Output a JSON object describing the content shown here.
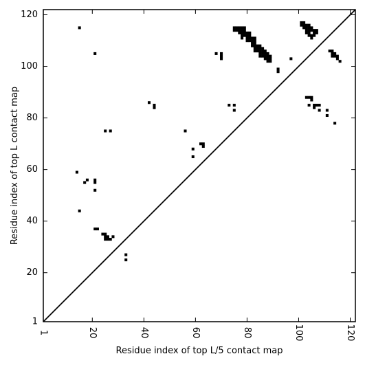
{
  "chart_data": {
    "type": "scatter",
    "title": "",
    "xlabel": "Residue index of top L/5 contact map",
    "ylabel": "Residue index of top L contact map",
    "xlim": [
      1,
      122
    ],
    "ylim": [
      1,
      122
    ],
    "xticks": [
      1,
      20,
      40,
      60,
      80,
      100,
      120
    ],
    "yticks": [
      1,
      20,
      40,
      60,
      80,
      100,
      120
    ],
    "grid": false,
    "marker": "square",
    "marker_color": "#000000",
    "diagonal": true,
    "series": [
      {
        "values": [
          [
            15,
            115
          ],
          [
            21,
            105
          ],
          [
            14,
            59
          ],
          [
            15,
            44
          ],
          [
            17,
            55
          ],
          [
            18,
            56
          ],
          [
            21,
            55
          ],
          [
            21,
            56
          ],
          [
            21,
            52
          ],
          [
            21,
            37
          ],
          [
            22,
            37
          ],
          [
            24,
            35
          ],
          [
            25,
            35
          ],
          [
            25,
            34
          ],
          [
            25,
            33
          ],
          [
            26,
            34
          ],
          [
            26,
            33
          ],
          [
            27,
            33
          ],
          [
            28,
            34
          ],
          [
            33,
            27
          ],
          [
            33,
            25
          ],
          [
            25,
            75
          ],
          [
            27,
            75
          ],
          [
            42,
            86
          ],
          [
            44,
            85
          ],
          [
            44,
            84
          ],
          [
            56,
            75
          ],
          [
            59,
            68
          ],
          [
            59,
            65
          ],
          [
            62,
            70
          ],
          [
            63,
            70
          ],
          [
            63,
            69
          ],
          [
            68,
            105
          ],
          [
            70,
            105
          ],
          [
            70,
            104
          ],
          [
            70,
            103
          ],
          [
            73,
            85
          ],
          [
            75,
            85
          ],
          [
            75,
            83
          ],
          [
            75,
            115
          ],
          [
            75,
            114
          ],
          [
            76,
            115
          ],
          [
            76,
            114
          ],
          [
            77,
            115
          ],
          [
            77,
            114
          ],
          [
            77,
            113
          ],
          [
            78,
            115
          ],
          [
            78,
            114
          ],
          [
            78,
            113
          ],
          [
            78,
            112
          ],
          [
            78,
            111
          ],
          [
            79,
            115
          ],
          [
            79,
            114
          ],
          [
            79,
            113
          ],
          [
            79,
            112
          ],
          [
            80,
            113
          ],
          [
            80,
            112
          ],
          [
            80,
            111
          ],
          [
            80,
            110
          ],
          [
            81,
            113
          ],
          [
            81,
            112
          ],
          [
            81,
            111
          ],
          [
            81,
            110
          ],
          [
            82,
            111
          ],
          [
            82,
            110
          ],
          [
            82,
            109
          ],
          [
            82,
            108
          ],
          [
            83,
            111
          ],
          [
            83,
            110
          ],
          [
            83,
            109
          ],
          [
            83,
            108
          ],
          [
            83,
            107
          ],
          [
            83,
            106
          ],
          [
            84,
            108
          ],
          [
            84,
            107
          ],
          [
            84,
            106
          ],
          [
            85,
            108
          ],
          [
            85,
            107
          ],
          [
            85,
            106
          ],
          [
            85,
            105
          ],
          [
            85,
            104
          ],
          [
            86,
            107
          ],
          [
            86,
            106
          ],
          [
            86,
            105
          ],
          [
            86,
            104
          ],
          [
            87,
            106
          ],
          [
            87,
            105
          ],
          [
            87,
            104
          ],
          [
            87,
            103
          ],
          [
            88,
            105
          ],
          [
            88,
            104
          ],
          [
            88,
            103
          ],
          [
            88,
            102
          ],
          [
            89,
            104
          ],
          [
            89,
            103
          ],
          [
            89,
            102
          ],
          [
            92,
            99
          ],
          [
            92,
            98
          ],
          [
            97,
            103
          ],
          [
            101,
            117
          ],
          [
            101,
            116
          ],
          [
            102,
            117
          ],
          [
            102,
            116
          ],
          [
            102,
            115
          ],
          [
            103,
            116
          ],
          [
            103,
            115
          ],
          [
            103,
            114
          ],
          [
            103,
            113
          ],
          [
            104,
            116
          ],
          [
            104,
            115
          ],
          [
            104,
            114
          ],
          [
            104,
            113
          ],
          [
            104,
            112
          ],
          [
            105,
            115
          ],
          [
            105,
            114
          ],
          [
            105,
            112
          ],
          [
            105,
            111
          ],
          [
            106,
            114
          ],
          [
            106,
            113
          ],
          [
            106,
            112
          ],
          [
            107,
            114
          ],
          [
            107,
            113
          ],
          [
            103,
            88
          ],
          [
            104,
            88
          ],
          [
            104,
            85
          ],
          [
            105,
            88
          ],
          [
            105,
            87
          ],
          [
            106,
            85
          ],
          [
            106,
            84
          ],
          [
            107,
            85
          ],
          [
            108,
            85
          ],
          [
            108,
            83
          ],
          [
            111,
            83
          ],
          [
            111,
            81
          ],
          [
            112,
            106
          ],
          [
            113,
            106
          ],
          [
            113,
            105
          ],
          [
            113,
            104
          ],
          [
            114,
            105
          ],
          [
            114,
            104
          ],
          [
            114,
            78
          ],
          [
            115,
            104
          ],
          [
            115,
            103
          ],
          [
            116,
            102
          ]
        ]
      }
    ]
  }
}
